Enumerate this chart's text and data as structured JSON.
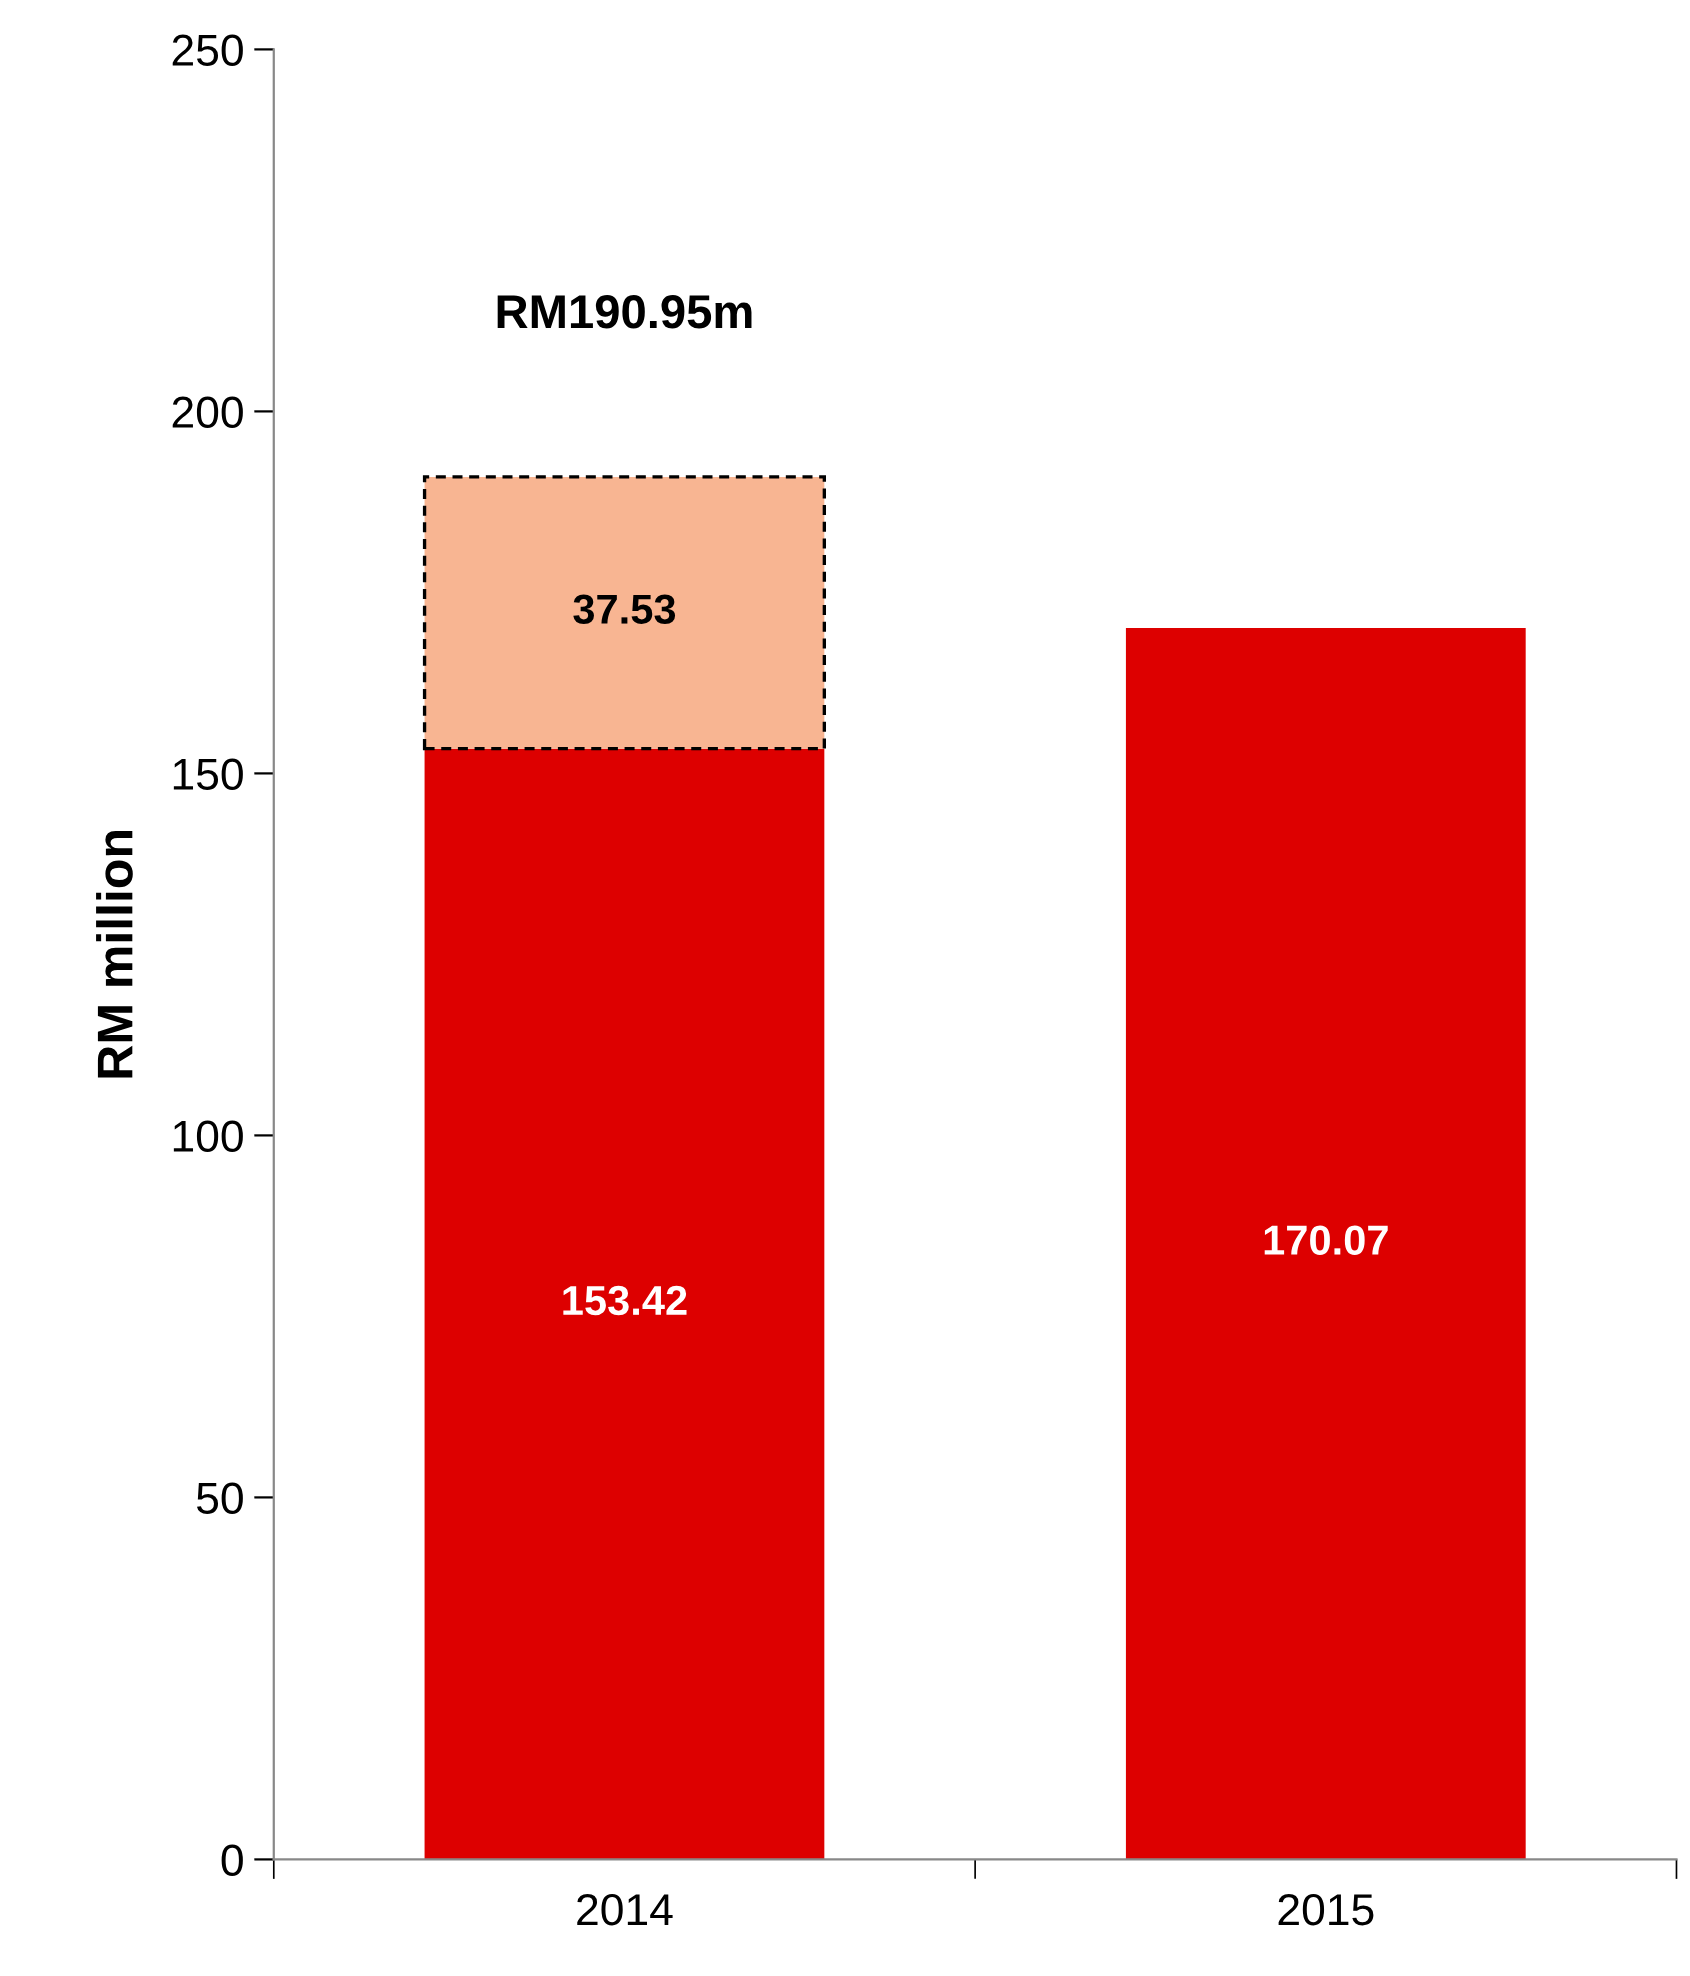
{
  "chart_data": {
    "type": "bar",
    "ylabel": "RM million",
    "categories": [
      "2014",
      "2015"
    ],
    "stacked": true,
    "series": [
      {
        "color": "#dd0000",
        "values": [
          153.42,
          170.07
        ]
      },
      {
        "color": "#f8b592",
        "values": [
          37.53,
          null
        ]
      }
    ],
    "data_labels": true,
    "totals": [
      "RM190.95m",
      null
    ],
    "ylim": [
      0,
      250
    ],
    "yticks": [
      0,
      50,
      100,
      150,
      200,
      250
    ],
    "grid": false,
    "legend": false
  }
}
